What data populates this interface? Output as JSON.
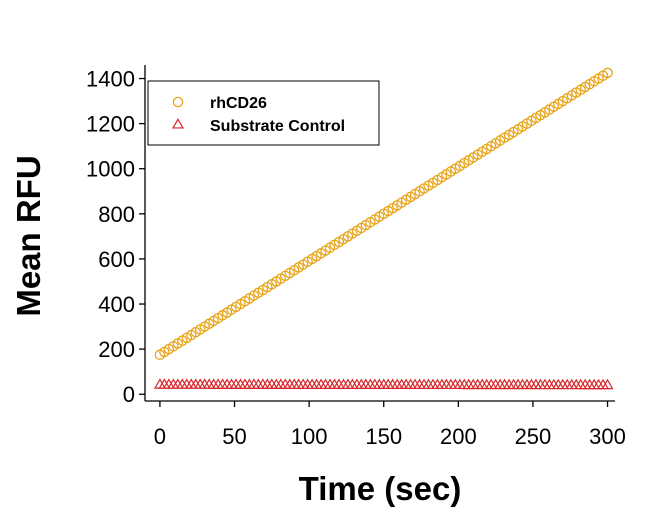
{
  "chart_data": {
    "type": "scatter",
    "xlabel": "Time (sec)",
    "ylabel": "Mean RFU",
    "xlim": [
      -10,
      305
    ],
    "ylim": [
      -30,
      1460
    ],
    "xticks": [
      0,
      50,
      100,
      150,
      200,
      250,
      300
    ],
    "yticks": [
      0,
      200,
      400,
      600,
      800,
      1000,
      1200,
      1400
    ],
    "grid": false,
    "legend_position": "top-left",
    "series": [
      {
        "name": "rhCD26",
        "marker": "circle",
        "color": "#E8A317",
        "x_start": 0,
        "x_end": 300,
        "x_step": 3,
        "y_start": 175,
        "y_end": 1425
      },
      {
        "name": "Substrate Control",
        "marker": "triangle",
        "color": "#D7262B",
        "x_start": 0,
        "x_end": 300,
        "x_step": 3,
        "y_start": 40,
        "y_end": 38
      }
    ]
  }
}
